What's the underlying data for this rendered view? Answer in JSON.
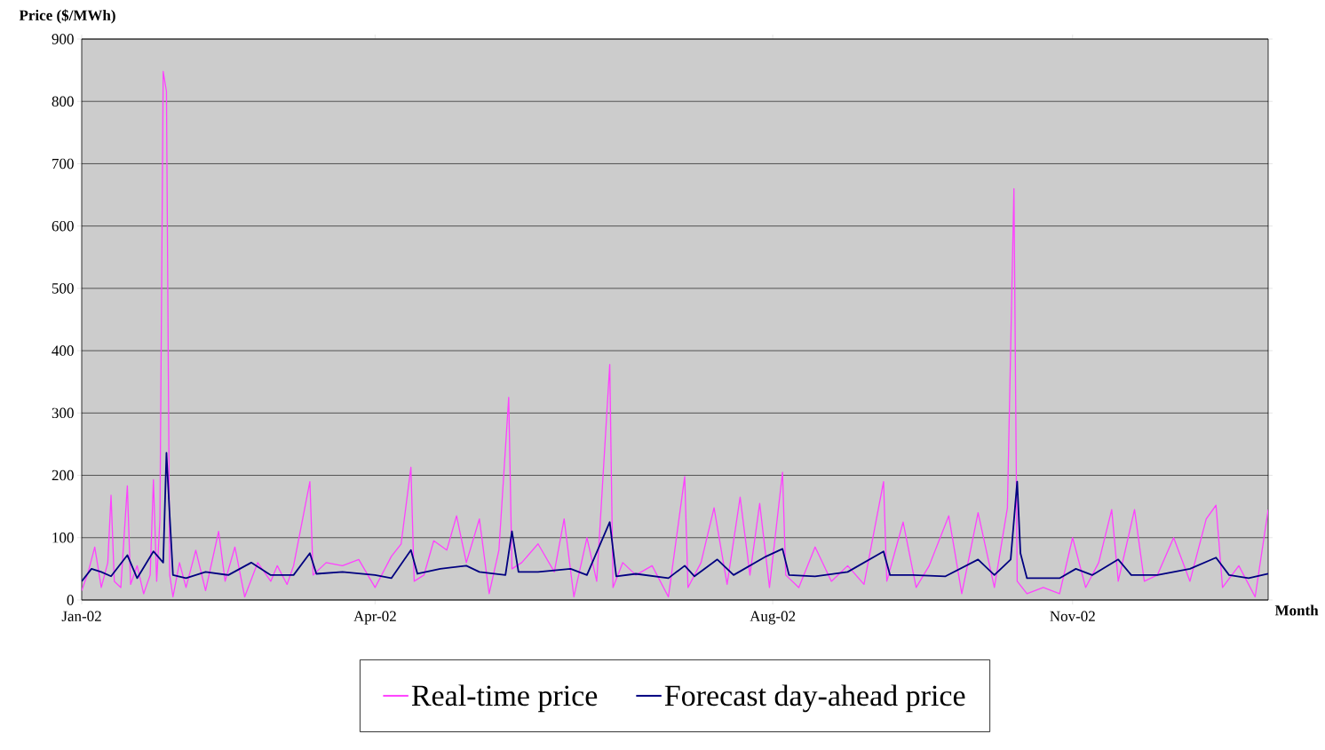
{
  "chart_data": {
    "type": "line",
    "xlabel": "Month",
    "ylabel": "Price ($/MWh)",
    "xlim": [
      "2002-01-01",
      "2002-12-31"
    ],
    "ylim": [
      0,
      900
    ],
    "xticks": [
      {
        "value": "2002-01-01",
        "label": "Jan-02"
      },
      {
        "value": "2002-04-01",
        "label": "Apr-02"
      },
      {
        "value": "2002-08-01",
        "label": "Aug-02"
      },
      {
        "value": "2002-11-01",
        "label": "Nov-02"
      }
    ],
    "yticks": [
      0,
      100,
      200,
      300,
      400,
      500,
      600,
      700,
      800,
      900
    ],
    "grid": "y",
    "legend": "bottom",
    "marker": "none",
    "line_style": "solid",
    "series": [
      {
        "name": "Real-time price",
        "color": "#ff40ff",
        "x": [
          "2002-01-01",
          "2002-01-03",
          "2002-01-05",
          "2002-01-07",
          "2002-01-09",
          "2002-01-10",
          "2002-01-11",
          "2002-01-13",
          "2002-01-15",
          "2002-01-16",
          "2002-01-18",
          "2002-01-20",
          "2002-01-22",
          "2002-01-23",
          "2002-01-24",
          "2002-01-25",
          "2002-01-26",
          "2002-01-27",
          "2002-01-28",
          "2002-01-29",
          "2002-01-31",
          "2002-02-02",
          "2002-02-05",
          "2002-02-08",
          "2002-02-12",
          "2002-02-14",
          "2002-02-17",
          "2002-02-20",
          "2002-02-24",
          "2002-02-28",
          "2002-03-02",
          "2002-03-05",
          "2002-03-07",
          "2002-03-12",
          "2002-03-13",
          "2002-03-17",
          "2002-03-22",
          "2002-03-27",
          "2002-04-01",
          "2002-04-06",
          "2002-04-09",
          "2002-04-12",
          "2002-04-13",
          "2002-04-16",
          "2002-04-19",
          "2002-04-23",
          "2002-04-26",
          "2002-04-29",
          "2002-05-03",
          "2002-05-06",
          "2002-05-09",
          "2002-05-12",
          "2002-05-13",
          "2002-05-16",
          "2002-05-21",
          "2002-05-26",
          "2002-05-29",
          "2002-06-01",
          "2002-06-05",
          "2002-06-08",
          "2002-06-12",
          "2002-06-13",
          "2002-06-16",
          "2002-06-20",
          "2002-06-25",
          "2002-06-30",
          "2002-07-05",
          "2002-07-06",
          "2002-07-10",
          "2002-07-14",
          "2002-07-18",
          "2002-07-22",
          "2002-07-25",
          "2002-07-28",
          "2002-07-31",
          "2002-08-04",
          "2002-08-05",
          "2002-08-09",
          "2002-08-14",
          "2002-08-19",
          "2002-08-24",
          "2002-08-29",
          "2002-09-04",
          "2002-09-05",
          "2002-09-10",
          "2002-09-14",
          "2002-09-18",
          "2002-09-24",
          "2002-09-28",
          "2002-10-03",
          "2002-10-08",
          "2002-10-12",
          "2002-10-14",
          "2002-10-15",
          "2002-10-18",
          "2002-10-23",
          "2002-10-28",
          "2002-11-01",
          "2002-11-05",
          "2002-11-09",
          "2002-11-13",
          "2002-11-15",
          "2002-11-20",
          "2002-11-23",
          "2002-11-27",
          "2002-12-02",
          "2002-12-07",
          "2002-12-12",
          "2002-12-15",
          "2002-12-17",
          "2002-12-22",
          "2002-12-27",
          "2002-12-31"
        ],
        "values": [
          15,
          45,
          85,
          20,
          60,
          168,
          30,
          20,
          183,
          25,
          55,
          10,
          40,
          193,
          30,
          130,
          848,
          816,
          40,
          5,
          60,
          20,
          80,
          15,
          110,
          30,
          85,
          5,
          60,
          30,
          55,
          25,
          55,
          190,
          40,
          60,
          55,
          65,
          20,
          70,
          90,
          213,
          30,
          40,
          95,
          80,
          135,
          60,
          130,
          10,
          80,
          325,
          50,
          60,
          90,
          45,
          130,
          5,
          100,
          30,
          378,
          20,
          60,
          40,
          55,
          5,
          198,
          20,
          60,
          148,
          25,
          165,
          40,
          155,
          20,
          205,
          40,
          20,
          85,
          30,
          55,
          25,
          190,
          30,
          125,
          20,
          55,
          135,
          10,
          140,
          20,
          148,
          660,
          30,
          10,
          20,
          10,
          100,
          20,
          60,
          145,
          30,
          145,
          30,
          40,
          100,
          30,
          130,
          152,
          20,
          55,
          5,
          145
        ]
      },
      {
        "name": "Forecast day-ahead price",
        "color": "#000080",
        "x": [
          "2002-01-01",
          "2002-01-04",
          "2002-01-07",
          "2002-01-10",
          "2002-01-15",
          "2002-01-18",
          "2002-01-23",
          "2002-01-26",
          "2002-01-27",
          "2002-01-28",
          "2002-01-29",
          "2002-02-02",
          "2002-02-08",
          "2002-02-15",
          "2002-02-22",
          "2002-02-28",
          "2002-03-07",
          "2002-03-12",
          "2002-03-14",
          "2002-03-22",
          "2002-04-01",
          "2002-04-06",
          "2002-04-12",
          "2002-04-14",
          "2002-04-21",
          "2002-04-29",
          "2002-05-03",
          "2002-05-11",
          "2002-05-13",
          "2002-05-15",
          "2002-05-21",
          "2002-05-31",
          "2002-06-05",
          "2002-06-12",
          "2002-06-14",
          "2002-06-20",
          "2002-06-30",
          "2002-07-05",
          "2002-07-08",
          "2002-07-15",
          "2002-07-20",
          "2002-07-30",
          "2002-08-04",
          "2002-08-06",
          "2002-08-14",
          "2002-08-24",
          "2002-09-04",
          "2002-09-06",
          "2002-09-13",
          "2002-09-23",
          "2002-10-03",
          "2002-10-08",
          "2002-10-13",
          "2002-10-15",
          "2002-10-16",
          "2002-10-18",
          "2002-10-28",
          "2002-11-02",
          "2002-11-07",
          "2002-11-15",
          "2002-11-19",
          "2002-11-27",
          "2002-12-07",
          "2002-12-15",
          "2002-12-19",
          "2002-12-25",
          "2002-12-31"
        ],
        "values": [
          30,
          50,
          45,
          38,
          72,
          35,
          78,
          60,
          236,
          135,
          40,
          35,
          45,
          40,
          60,
          40,
          40,
          75,
          42,
          45,
          40,
          35,
          80,
          42,
          50,
          55,
          45,
          40,
          110,
          45,
          45,
          50,
          40,
          125,
          38,
          42,
          35,
          55,
          38,
          65,
          40,
          70,
          82,
          40,
          38,
          45,
          78,
          40,
          40,
          38,
          65,
          40,
          65,
          190,
          75,
          35,
          35,
          50,
          40,
          65,
          40,
          40,
          50,
          68,
          40,
          35,
          42
        ]
      }
    ]
  }
}
